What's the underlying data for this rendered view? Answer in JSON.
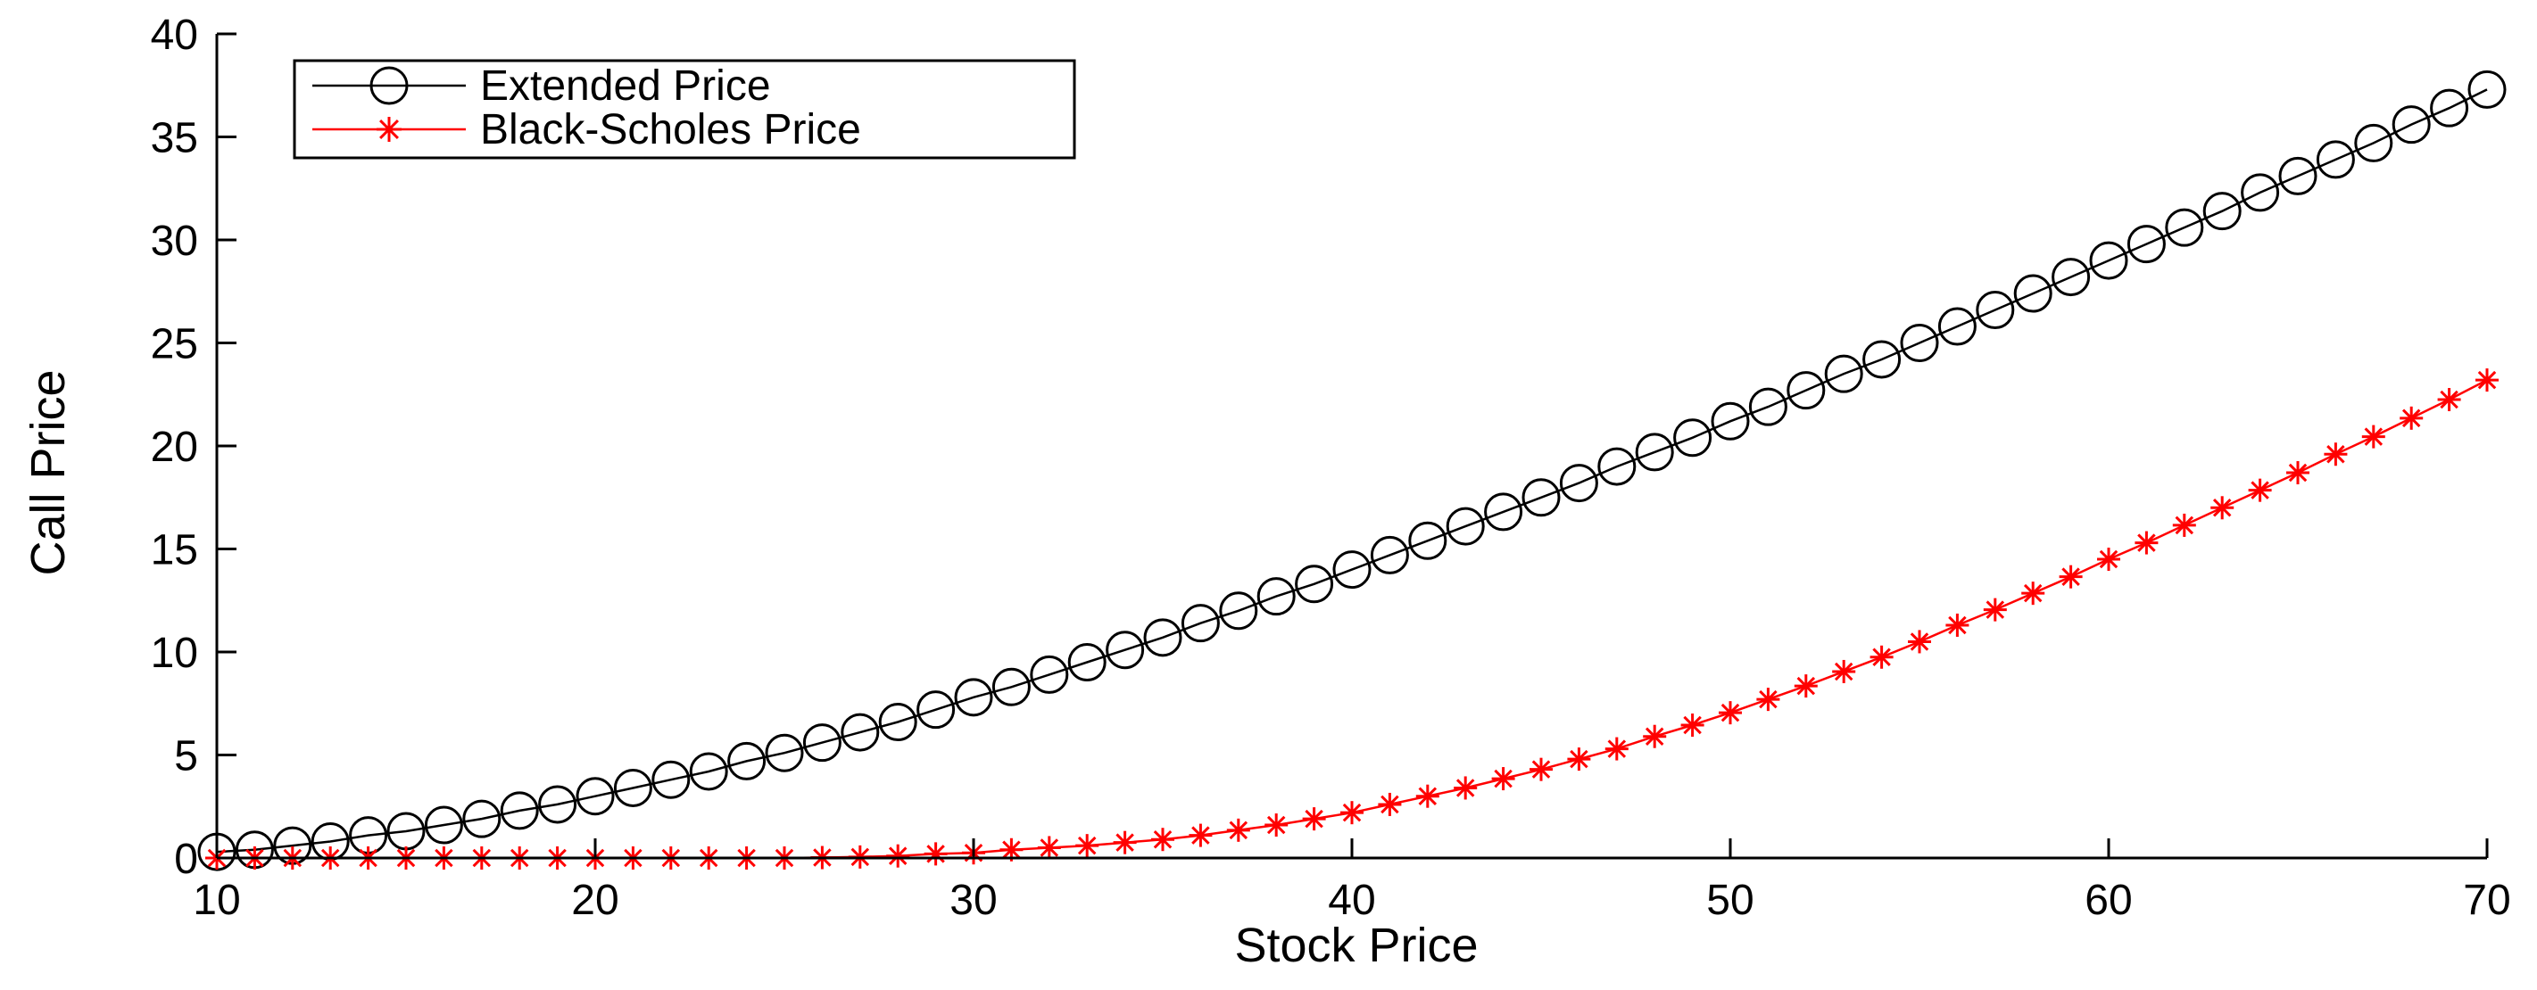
{
  "chart_data": {
    "type": "line",
    "title": "",
    "xlabel": "Stock Price",
    "ylabel": "Call Price",
    "xlim": [
      10,
      70
    ],
    "ylim": [
      0,
      40
    ],
    "x_ticks": [
      "10",
      "20",
      "30",
      "40",
      "50",
      "60",
      "70"
    ],
    "y_ticks": [
      "0",
      "5",
      "10",
      "15",
      "20",
      "25",
      "30",
      "35",
      "40"
    ],
    "grid": false,
    "legend_position": "top-left",
    "x": [
      10,
      11,
      12,
      13,
      14,
      15,
      16,
      17,
      18,
      19,
      20,
      21,
      22,
      23,
      24,
      25,
      26,
      27,
      28,
      29,
      30,
      31,
      32,
      33,
      34,
      35,
      36,
      37,
      38,
      39,
      40,
      41,
      42,
      43,
      44,
      45,
      46,
      47,
      48,
      49,
      50,
      51,
      52,
      53,
      54,
      55,
      56,
      57,
      58,
      59,
      60,
      61,
      62,
      63,
      64,
      65,
      66,
      67,
      68,
      69,
      70
    ],
    "series": [
      {
        "name": "Extended Price",
        "color": "#000000",
        "marker": "circle",
        "values": [
          0.3,
          0.4,
          0.6,
          0.8,
          1.1,
          1.3,
          1.6,
          1.9,
          2.3,
          2.6,
          3.0,
          3.4,
          3.8,
          4.2,
          4.7,
          5.1,
          5.6,
          6.1,
          6.6,
          7.2,
          7.8,
          8.3,
          8.9,
          9.5,
          10.1,
          10.7,
          11.4,
          12.0,
          12.7,
          13.3,
          14.0,
          14.7,
          15.4,
          16.1,
          16.8,
          17.5,
          18.2,
          19.0,
          19.7,
          20.4,
          21.2,
          21.9,
          22.7,
          23.5,
          24.2,
          25.0,
          25.8,
          26.6,
          27.4,
          28.2,
          29.0,
          29.8,
          30.6,
          31.4,
          32.3,
          33.1,
          33.9,
          34.7,
          35.6,
          36.4,
          37.3
        ]
      },
      {
        "name": "Black-Scholes Price",
        "color": "#ff0000",
        "marker": "asterisk",
        "values": [
          0,
          0,
          0,
          0,
          0,
          0,
          0,
          0,
          0,
          0,
          0,
          0,
          0,
          0,
          0,
          0,
          0.02,
          0.05,
          0.1,
          0.2,
          0.25,
          0.4,
          0.5,
          0.6,
          0.75,
          0.9,
          1.1,
          1.35,
          1.6,
          1.9,
          2.2,
          2.6,
          3.0,
          3.4,
          3.85,
          4.3,
          4.8,
          5.3,
          5.9,
          6.45,
          7.05,
          7.7,
          8.35,
          9.05,
          9.75,
          10.5,
          11.3,
          12.05,
          12.85,
          13.65,
          14.5,
          15.3,
          16.15,
          17.0,
          17.85,
          18.7,
          19.6,
          20.45,
          21.35,
          22.25,
          23.2
        ]
      }
    ]
  }
}
